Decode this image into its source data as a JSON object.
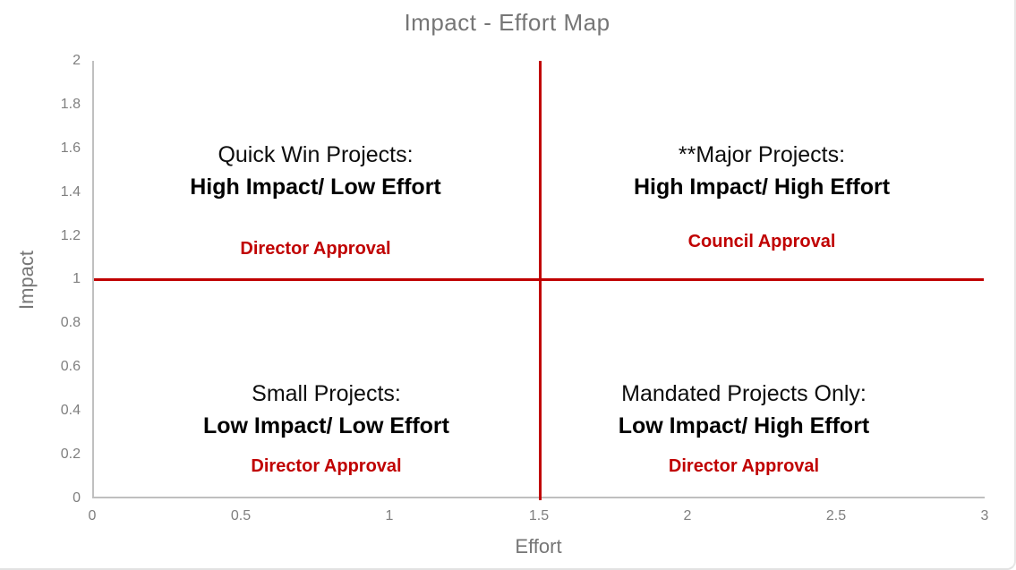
{
  "page": {
    "title": "Impact - Effort Map"
  },
  "axes": {
    "x_label": "Effort",
    "y_label": "Impact",
    "x_ticks": [
      "0",
      "0.5",
      "1",
      "1.5",
      "2",
      "2.5",
      "3"
    ],
    "y_ticks": [
      "2",
      "1.8",
      "1.6",
      "1.4",
      "1.2",
      "1",
      "0.8",
      "0.6",
      "0.4",
      "0.2",
      "0"
    ]
  },
  "quadrants": {
    "top_left": {
      "name": "Quick Win Projects:",
      "detail": "High Impact/ Low Effort",
      "approval": "Director Approval"
    },
    "top_right": {
      "name": "**Major Projects:",
      "detail": "High Impact/ High Effort",
      "approval": "Council Approval"
    },
    "bottom_left": {
      "name": "Small Projects:",
      "detail": "Low Impact/ Low Effort",
      "approval": "Director Approval"
    },
    "bottom_right": {
      "name": "Mandated Projects Only:",
      "detail": "Low Impact/ High Effort",
      "approval": "Director Approval"
    }
  },
  "colors": {
    "divider_red": "#C00000",
    "approval_red": "#C00000",
    "axis_line_gray": "#BFBFBF",
    "label_gray": "#767676",
    "tick_gray": "#7F7F7F"
  },
  "chart_data": {
    "type": "scatter",
    "title": "Impact - Effort Map",
    "xlabel": "Effort",
    "ylabel": "Impact",
    "xlim": [
      0,
      3
    ],
    "ylim": [
      0,
      2
    ],
    "x_ticks": [
      0,
      0.5,
      1,
      1.5,
      2,
      2.5,
      3
    ],
    "y_ticks": [
      0,
      0.2,
      0.4,
      0.6,
      0.8,
      1,
      1.2,
      1.4,
      1.6,
      1.8,
      2
    ],
    "grid": false,
    "legend": false,
    "points": [],
    "divider_lines": [
      {
        "orientation": "vertical",
        "x": 1.5,
        "color": "#C00000"
      },
      {
        "orientation": "horizontal",
        "y": 1.0,
        "color": "#C00000"
      }
    ],
    "annotations": [
      {
        "x": 0.75,
        "y": 1.5,
        "title": "Quick Win Projects:",
        "subtitle": "High Impact/ Low Effort",
        "approval": "Director Approval"
      },
      {
        "x": 2.25,
        "y": 1.5,
        "title": "**Major Projects:",
        "subtitle": "High Impact/ High Effort",
        "approval": "Council Approval"
      },
      {
        "x": 0.75,
        "y": 0.45,
        "title": "Small Projects:",
        "subtitle": "Low Impact/ Low Effort",
        "approval": "Director Approval"
      },
      {
        "x": 2.25,
        "y": 0.45,
        "title": "Mandated Projects Only:",
        "subtitle": "Low Impact/ High Effort",
        "approval": "Director Approval"
      }
    ]
  }
}
